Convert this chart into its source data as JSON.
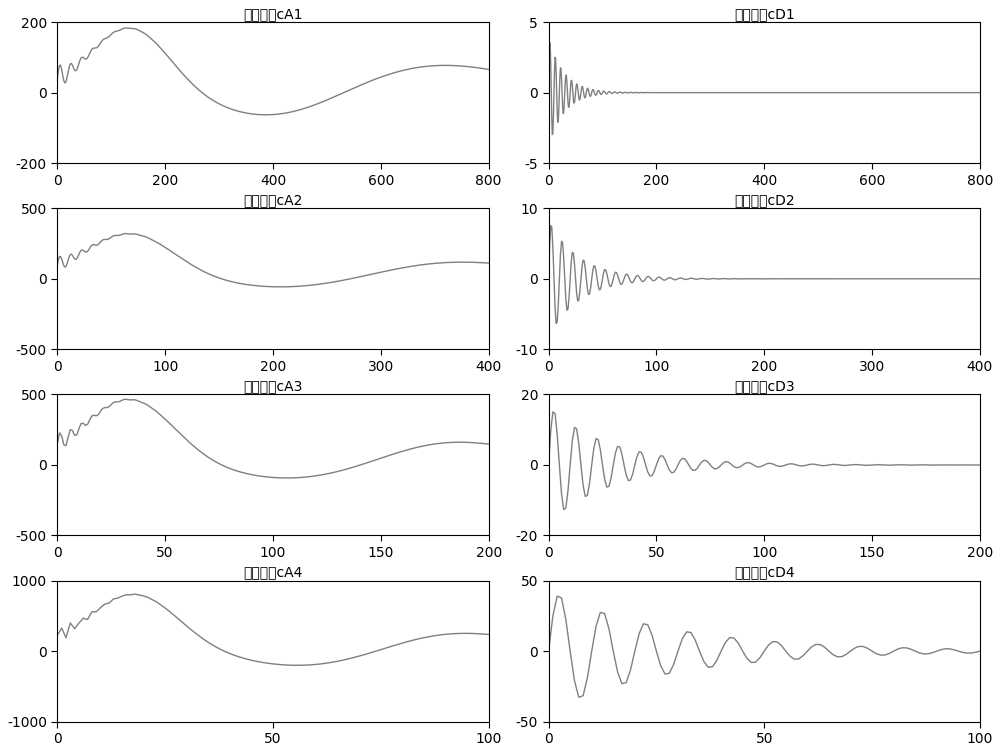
{
  "plots": [
    {
      "title": "尺度信号cA1",
      "xmax": 800,
      "ylim": [
        -200,
        200
      ],
      "yticks": [
        -200,
        0,
        200
      ],
      "xticks": [
        0,
        200,
        400,
        600,
        800
      ],
      "type": "cA",
      "level": 1
    },
    {
      "title": "细节信号cD1",
      "xmax": 800,
      "ylim": [
        -5,
        5
      ],
      "yticks": [
        -5,
        0,
        5
      ],
      "xticks": [
        0,
        200,
        400,
        600,
        800
      ],
      "type": "cD",
      "level": 1
    },
    {
      "title": "尺度信号cA2",
      "xmax": 400,
      "ylim": [
        -500,
        500
      ],
      "yticks": [
        -500,
        0,
        500
      ],
      "xticks": [
        0,
        100,
        200,
        300,
        400
      ],
      "type": "cA",
      "level": 2
    },
    {
      "title": "细节信号cD2",
      "xmax": 400,
      "ylim": [
        -10,
        10
      ],
      "yticks": [
        -10,
        0,
        10
      ],
      "xticks": [
        0,
        100,
        200,
        300,
        400
      ],
      "type": "cD",
      "level": 2
    },
    {
      "title": "尺度信号cA3",
      "xmax": 200,
      "ylim": [
        -500,
        500
      ],
      "yticks": [
        -500,
        0,
        500
      ],
      "xticks": [
        0,
        50,
        100,
        150,
        200
      ],
      "type": "cA",
      "level": 3
    },
    {
      "title": "细节信号cD3",
      "xmax": 200,
      "ylim": [
        -20,
        20
      ],
      "yticks": [
        -20,
        0,
        20
      ],
      "xticks": [
        0,
        50,
        100,
        150,
        200
      ],
      "type": "cD",
      "level": 3
    },
    {
      "title": "尺度信号cA4",
      "xmax": 100,
      "ylim": [
        -1000,
        1000
      ],
      "yticks": [
        -1000,
        0,
        1000
      ],
      "xticks": [
        0,
        50,
        100
      ],
      "type": "cA",
      "level": 4
    },
    {
      "title": "细节信号cD4",
      "xmax": 100,
      "ylim": [
        -50,
        50
      ],
      "yticks": [
        -50,
        0,
        50
      ],
      "xticks": [
        0,
        50,
        100
      ],
      "type": "cD",
      "level": 4
    }
  ],
  "line_color": "#808080",
  "line_width": 1.0,
  "bg_color": "#ffffff",
  "title_fontsize": 13,
  "tick_fontsize": 10
}
